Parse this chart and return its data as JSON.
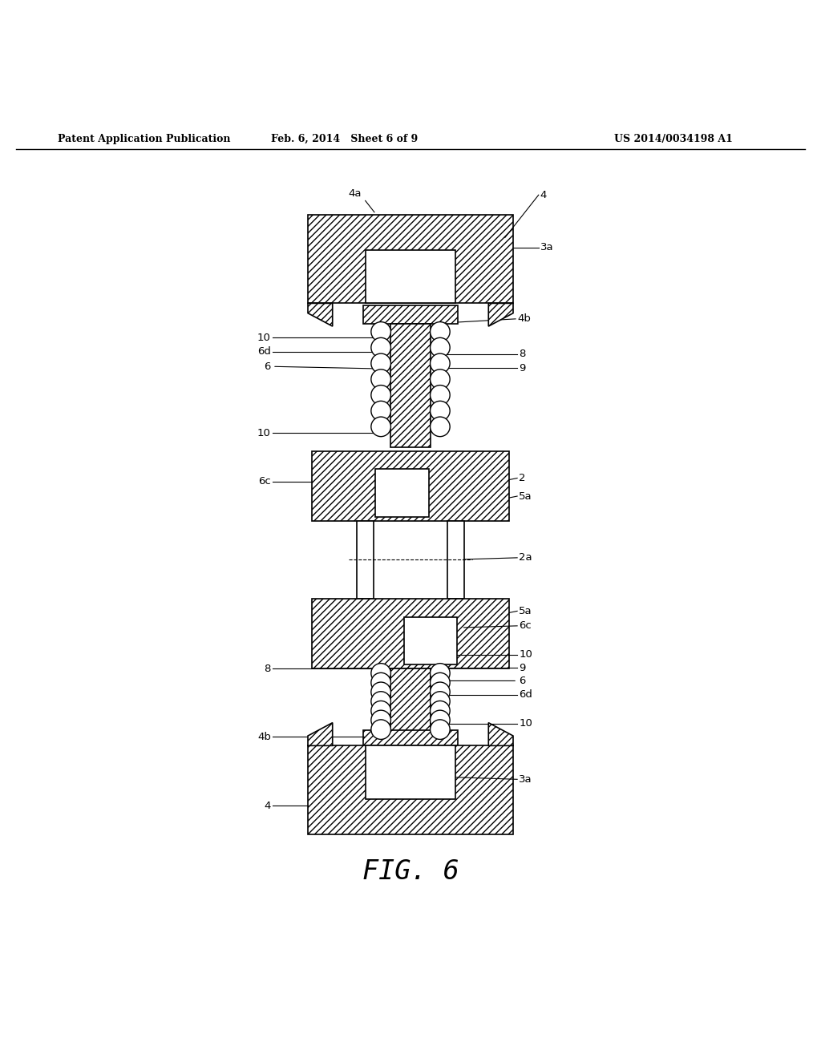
{
  "bg_color": "#ffffff",
  "line_color": "#000000",
  "header_text": "Patent Application Publication",
  "header_date": "Feb. 6, 2014   Sheet 6 of 9",
  "header_patent": "US 2014/0034198 A1",
  "fig_label": "FIG. 6"
}
